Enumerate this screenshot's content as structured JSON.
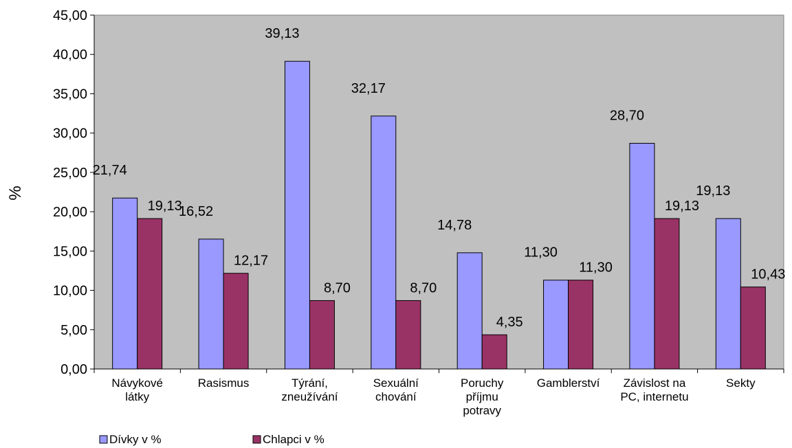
{
  "chart_data": {
    "type": "bar",
    "ylabel": "%",
    "xlabel": "",
    "ylim": [
      0,
      45
    ],
    "y_tick_step": 5,
    "y_tick_labels": [
      "0,00",
      "5,00",
      "10,00",
      "15,00",
      "20,00",
      "25,00",
      "30,00",
      "35,00",
      "40,00",
      "45,00"
    ],
    "grid": false,
    "plot_background": "#C0C0C0",
    "legend_position": "bottom-left",
    "categories": [
      [
        "Návykové",
        "látky"
      ],
      [
        "Rasismus"
      ],
      [
        "Týrání,",
        "zneužívání"
      ],
      [
        "Sexuální",
        "chování"
      ],
      [
        "Poruchy",
        "příjmu",
        "potravy"
      ],
      [
        "Gamblerství"
      ],
      [
        "Závislost na",
        "PC, internetu"
      ],
      [
        "Sekty"
      ]
    ],
    "series": [
      {
        "name": "Dívky v %",
        "color": "#9999FF",
        "values": [
          21.74,
          16.52,
          39.13,
          32.17,
          14.78,
          11.3,
          28.7,
          19.13
        ],
        "labels": [
          "21,74",
          "16,52",
          "39,13",
          "32,17",
          "14,78",
          "11,30",
          "28,70",
          "19,13"
        ]
      },
      {
        "name": "Chlapci v %",
        "color": "#993366",
        "values": [
          19.13,
          12.17,
          8.7,
          8.7,
          4.35,
          11.3,
          19.13,
          10.43
        ],
        "labels": [
          "19,13",
          "12,17",
          "8,70",
          "8,70",
          "4,35",
          "11,30",
          "19,13",
          "10,43"
        ]
      }
    ]
  }
}
